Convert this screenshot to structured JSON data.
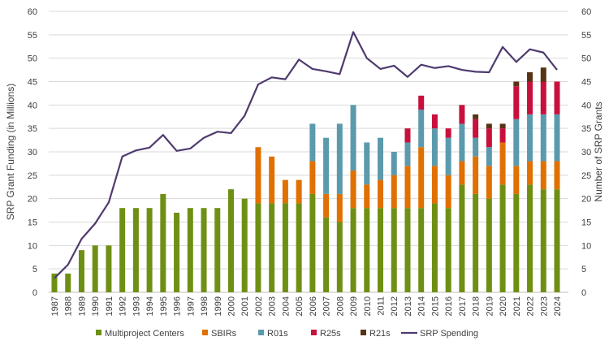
{
  "chart_data": {
    "type": "bar",
    "stacked": true,
    "categories": [
      "1987",
      "1988",
      "1989",
      "1990",
      "1991",
      "1992",
      "1993",
      "1994",
      "1995",
      "1996",
      "1997",
      "1998",
      "1999",
      "2000",
      "2001",
      "2002",
      "2003",
      "2004",
      "2005",
      "2006",
      "2007",
      "2008",
      "2009",
      "2010",
      "2011",
      "2012",
      "2013",
      "2014",
      "2015",
      "2016",
      "2017",
      "2018",
      "2019",
      "2020",
      "2021",
      "2022",
      "2023",
      "2024"
    ],
    "ylabel": "SRP Grant Funding (in Millions)",
    "y2label": "Number of SRP Grants",
    "ylim": [
      0,
      60
    ],
    "y2lim": [
      0,
      60
    ],
    "yticks": [
      "0",
      "5",
      "10",
      "15",
      "20",
      "25",
      "30",
      "35",
      "40",
      "45",
      "50",
      "55",
      "60"
    ],
    "grid": true,
    "legend_position": "bottom",
    "series": [
      {
        "name": "Multiproject Centers",
        "type": "bar",
        "axis": "right",
        "color": "#6f8f14",
        "values": [
          4,
          4,
          9,
          10,
          10,
          18,
          18,
          18,
          21,
          17,
          18,
          18,
          18,
          22,
          20,
          19,
          19,
          19,
          19,
          21,
          16,
          15,
          18,
          18,
          18,
          18,
          18,
          18,
          19,
          18,
          23,
          21,
          20,
          23,
          21,
          23,
          22,
          22
        ]
      },
      {
        "name": "SBIRs",
        "type": "bar",
        "axis": "right",
        "color": "#e07000",
        "values": [
          0,
          0,
          0,
          0,
          0,
          0,
          0,
          0,
          0,
          0,
          0,
          0,
          0,
          0,
          0,
          12,
          10,
          5,
          5,
          7,
          5,
          6,
          8,
          5,
          6,
          7,
          9,
          13,
          8,
          7,
          5,
          8,
          7,
          9,
          6,
          5,
          6,
          6
        ]
      },
      {
        "name": "R01s",
        "type": "bar",
        "axis": "right",
        "color": "#5b9aad",
        "values": [
          0,
          0,
          0,
          0,
          0,
          0,
          0,
          0,
          0,
          0,
          0,
          0,
          0,
          0,
          0,
          0,
          0,
          0,
          0,
          8,
          12,
          15,
          14,
          9,
          9,
          5,
          5,
          8,
          8,
          8,
          8,
          4,
          4,
          0,
          10,
          10,
          10,
          10
        ]
      },
      {
        "name": "R25s",
        "type": "bar",
        "axis": "right",
        "color": "#c8103c",
        "values": [
          0,
          0,
          0,
          0,
          0,
          0,
          0,
          0,
          0,
          0,
          0,
          0,
          0,
          0,
          0,
          0,
          0,
          0,
          0,
          0,
          0,
          0,
          0,
          0,
          0,
          0,
          3,
          3,
          3,
          2,
          4,
          4,
          4,
          3,
          7,
          7,
          7,
          7
        ]
      },
      {
        "name": "R21s",
        "type": "bar",
        "axis": "right",
        "color": "#573314",
        "values": [
          0,
          0,
          0,
          0,
          0,
          0,
          0,
          0,
          0,
          0,
          0,
          0,
          0,
          0,
          0,
          0,
          0,
          0,
          0,
          0,
          0,
          0,
          0,
          0,
          0,
          0,
          0,
          0,
          0,
          0,
          0,
          1,
          1,
          1,
          1,
          2,
          3,
          0
        ]
      },
      {
        "name": "SRP Spending",
        "type": "line",
        "axis": "left",
        "color": "#4f3a6e",
        "values": [
          3.0,
          5.9,
          11.4,
          14.7,
          19.2,
          29.0,
          30.3,
          30.9,
          33.6,
          30.2,
          30.7,
          33.0,
          34.3,
          34.0,
          37.7,
          44.4,
          45.9,
          45.5,
          49.7,
          47.7,
          47.2,
          46.6,
          55.6,
          50.0,
          47.7,
          48.4,
          46.0,
          48.6,
          47.9,
          48.3,
          47.5,
          47.1,
          47.0,
          52.4,
          49.2,
          51.9,
          51.2,
          47.5
        ]
      }
    ]
  }
}
